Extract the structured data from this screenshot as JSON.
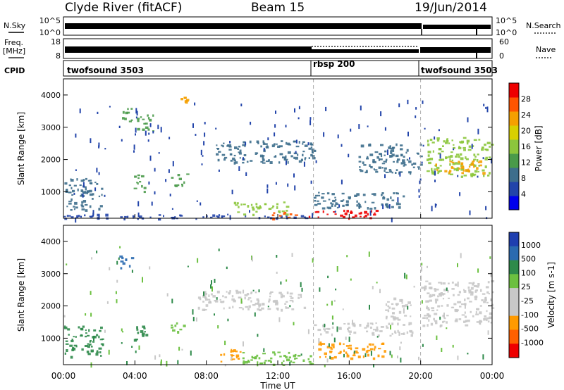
{
  "header": {
    "station": "Clyde River (fitACF)",
    "beam": "Beam 15",
    "date": "19/Jun/2014"
  },
  "summary": {
    "nsky_label": "N.Sky",
    "nsky_ticks": [
      "10^5",
      "10^0"
    ],
    "nsearch_label": "N.Search",
    "nsearch_ticks": [
      "10^5",
      "10^0"
    ],
    "freq_label_1": "Freq.",
    "freq_label_2": "[MHz]",
    "freq_ticks": [
      "18",
      "8"
    ],
    "nave_label": "Nave",
    "nave_ticks": [
      "60",
      "0"
    ],
    "cpid_label": "CPID",
    "cpid_segments": [
      {
        "name": "twofsound 3503",
        "start_hour": 0,
        "end_hour": 14
      },
      {
        "name": "rbsp 200",
        "start_hour": 14,
        "end_hour": 20
      },
      {
        "name": "twofsound 3503",
        "start_hour": 20,
        "end_hour": 24
      }
    ]
  },
  "colors": {
    "power_scale": [
      "#0000ee",
      "#2244aa",
      "#3d6e8c",
      "#4a9a4a",
      "#8cc63c",
      "#d8d000",
      "#f5a000",
      "#ff5500",
      "#ee0000"
    ],
    "velocity_scale": [
      "#1f3fb0",
      "#2a6ab0",
      "#2e8a4a",
      "#6cc040",
      "#c8c8c8",
      "#c8c8c8",
      "#ff9a00",
      "#ff6000",
      "#ee0000"
    ],
    "nodata": "#ffffff"
  },
  "chart_data": [
    {
      "type": "heatmap",
      "panel": "power",
      "xlabel": "",
      "ylabel": "Slant Range [km]",
      "xlim_hours": [
        0,
        24
      ],
      "ylim": [
        180,
        4500
      ],
      "yticks": [
        1000,
        2000,
        3000,
        4000
      ],
      "colorbar_label": "Power [dB]",
      "colorbar_range": [
        0,
        32
      ],
      "colorbar_ticks": [
        "4",
        "8",
        "12",
        "16",
        "20",
        "24",
        "28"
      ],
      "regions": [
        {
          "t0": 0.0,
          "t1": 2.2,
          "r0": 450,
          "r1": 1450,
          "v": 10
        },
        {
          "t0": 0.0,
          "t1": 14.0,
          "r0": 180,
          "r1": 320,
          "v": 6
        },
        {
          "t0": 3.0,
          "t1": 3.8,
          "r0": 3200,
          "r1": 3600,
          "v": 12
        },
        {
          "t0": 3.9,
          "t1": 4.6,
          "r0": 1000,
          "r1": 1600,
          "v": 14
        },
        {
          "t0": 4.0,
          "t1": 5.0,
          "r0": 2900,
          "r1": 3400,
          "v": 12
        },
        {
          "t0": 6.0,
          "t1": 6.9,
          "r0": 1200,
          "r1": 1600,
          "v": 14
        },
        {
          "t0": 6.5,
          "t1": 6.9,
          "r0": 3700,
          "r1": 4000,
          "v": 24
        },
        {
          "t0": 8.5,
          "t1": 14.0,
          "r0": 1900,
          "r1": 2600,
          "v": 9
        },
        {
          "t0": 9.5,
          "t1": 12.5,
          "r0": 300,
          "r1": 700,
          "v": 16
        },
        {
          "t0": 11.5,
          "t1": 13.0,
          "r0": 180,
          "r1": 400,
          "v": 26
        },
        {
          "t0": 13.5,
          "t1": 17.5,
          "r0": 180,
          "r1": 450,
          "v": 29
        },
        {
          "t0": 14.0,
          "t1": 19.0,
          "r0": 500,
          "r1": 1000,
          "v": 10
        },
        {
          "t0": 16.5,
          "t1": 20.0,
          "r0": 1600,
          "r1": 2500,
          "v": 8
        },
        {
          "t0": 20.3,
          "t1": 24.0,
          "r0": 1500,
          "r1": 2700,
          "v": 15
        },
        {
          "t0": 20.8,
          "t1": 23.5,
          "r0": 1600,
          "r1": 2000,
          "v": 22
        }
      ]
    },
    {
      "type": "heatmap",
      "panel": "velocity",
      "xlabel": "Time UT",
      "ylabel": "Slant Range [km]",
      "xlim_hours": [
        0,
        24
      ],
      "ylim": [
        180,
        4500
      ],
      "yticks": [
        1000,
        2000,
        3000,
        4000
      ],
      "xticks": [
        "00:00",
        "04:00",
        "08:00",
        "12:00",
        "16:00",
        "20:00",
        "00:00"
      ],
      "colorbar_label": "Velocity [m s-1]",
      "colorbar_ticks": [
        "1000",
        "500",
        "100",
        "25",
        "-25",
        "-100",
        "-500",
        "-1000"
      ],
      "regions": [
        {
          "t0": 0.0,
          "t1": 2.2,
          "r0": 450,
          "r1": 1400,
          "v": 200
        },
        {
          "t0": 3.0,
          "t1": 3.8,
          "r0": 3200,
          "r1": 3600,
          "v": 500
        },
        {
          "t0": 3.9,
          "t1": 4.6,
          "r0": 900,
          "r1": 1500,
          "v": 400
        },
        {
          "t0": 6.0,
          "t1": 6.8,
          "r0": 1200,
          "r1": 1500,
          "v": 60
        },
        {
          "t0": 7.5,
          "t1": 13.5,
          "r0": 1900,
          "r1": 2500,
          "v": 0
        },
        {
          "t0": 8.5,
          "t1": 10.0,
          "r0": 300,
          "r1": 700,
          "v": -200
        },
        {
          "t0": 10.0,
          "t1": 14.0,
          "r0": 180,
          "r1": 600,
          "v": 80
        },
        {
          "t0": 14.0,
          "t1": 18.0,
          "r0": 400,
          "r1": 900,
          "v": -250
        },
        {
          "t0": 14.0,
          "t1": 19.5,
          "r0": 1100,
          "r1": 1500,
          "v": 0
        },
        {
          "t0": 18.0,
          "t1": 19.5,
          "r0": 1600,
          "r1": 2300,
          "v": 0
        },
        {
          "t0": 20.0,
          "t1": 24.0,
          "r0": 1400,
          "r1": 2800,
          "v": 0
        }
      ]
    }
  ]
}
